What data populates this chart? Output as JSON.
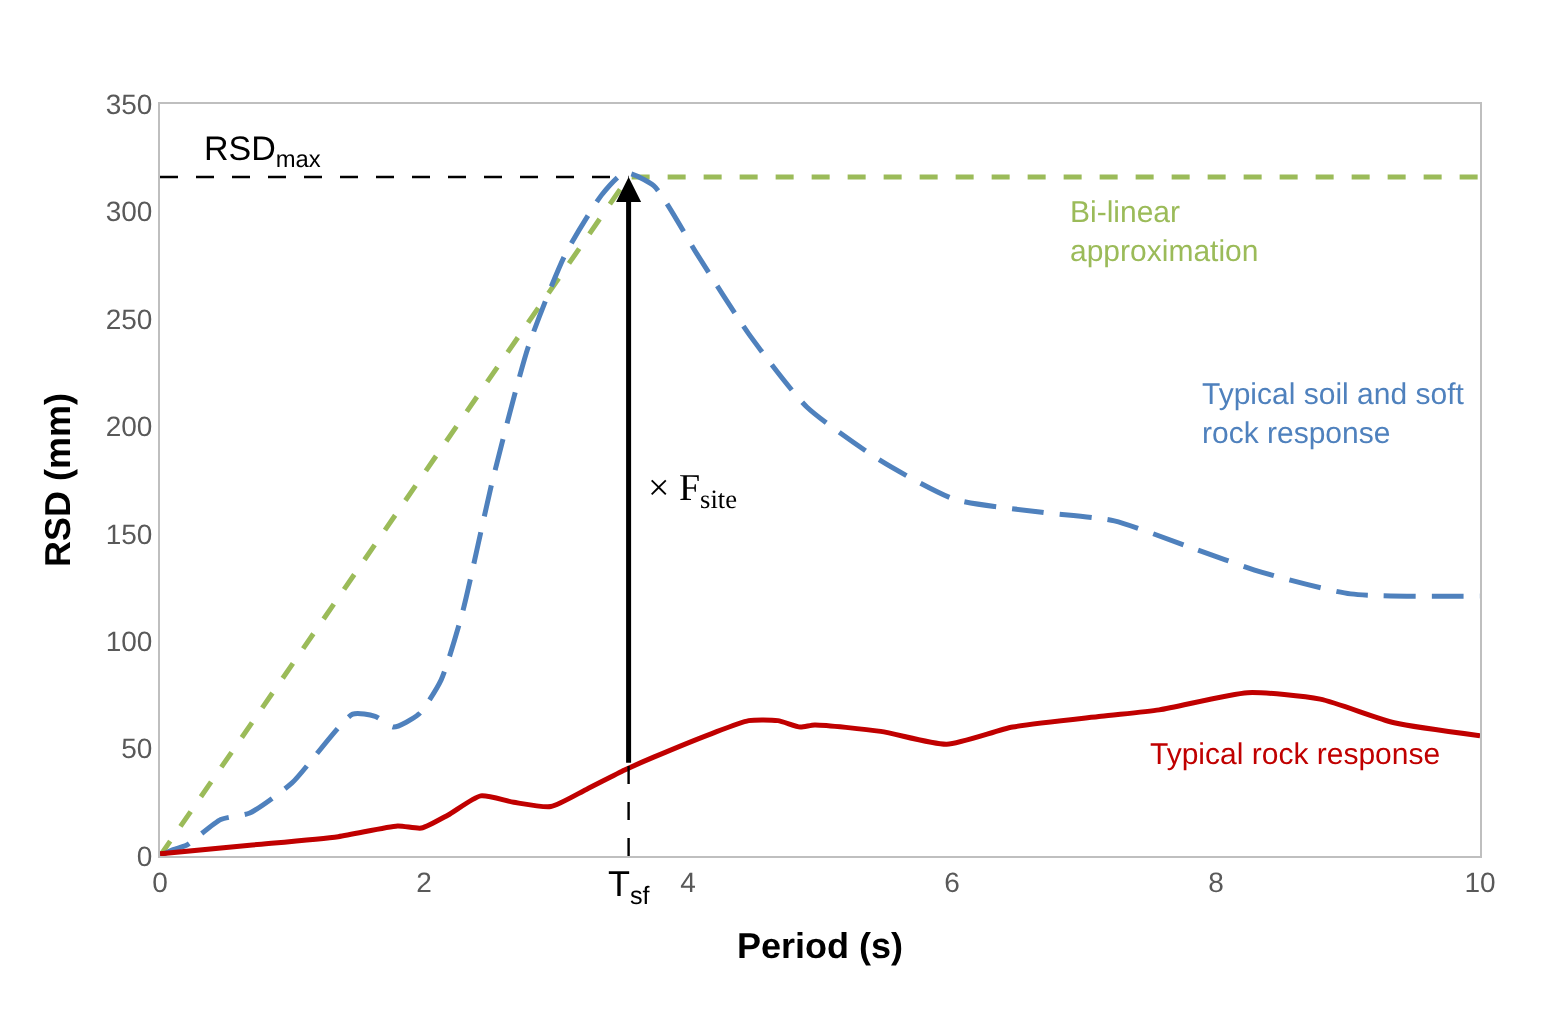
{
  "chart_data": {
    "type": "line",
    "xlabel": "Period (s)",
    "ylabel": "RSD (mm)",
    "xlim": [
      0,
      10
    ],
    "ylim": [
      0,
      350
    ],
    "xticks": [
      0,
      2,
      4,
      6,
      8,
      10
    ],
    "yticks": [
      0,
      50,
      100,
      150,
      200,
      250,
      300,
      350
    ],
    "grid": false,
    "legend": false,
    "marker": "none",
    "series": [
      {
        "name": "Bi-linear approximation",
        "color": "#9bbb59",
        "line_style": "dashed",
        "x": [
          0,
          3.55,
          10
        ],
        "values": [
          0,
          316,
          316
        ]
      },
      {
        "name": "Typical soil and soft rock response",
        "color": "#4f81bd",
        "line_style": "dashed",
        "x": [
          0,
          0.1,
          0.2,
          0.46,
          0.68,
          1.0,
          1.46,
          1.63,
          1.77,
          1.96,
          2.13,
          2.29,
          2.52,
          2.79,
          3.07,
          3.35,
          3.52,
          3.74,
          4.07,
          4.46,
          4.9,
          5.46,
          6.02,
          6.68,
          7.23,
          7.79,
          8.35,
          9.02,
          10
        ],
        "values": [
          0,
          3,
          5,
          17,
          20,
          34,
          66,
          65,
          60,
          66,
          82,
          113,
          175,
          237,
          280,
          308,
          318,
          312,
          280,
          243,
          209,
          184,
          166,
          160,
          156,
          144,
          132,
          122,
          121
        ]
      },
      {
        "name": "Typical rock response",
        "color": "#c00000",
        "line_style": "solid",
        "x": [
          0,
          0.68,
          1.35,
          1.8,
          1.98,
          2.18,
          2.43,
          2.68,
          2.96,
          3.23,
          3.52,
          3.74,
          4.18,
          4.46,
          4.68,
          4.85,
          4.96,
          5.46,
          5.96,
          6.46,
          7.13,
          7.57,
          8.24,
          8.79,
          9.35,
          10
        ],
        "values": [
          1,
          5,
          9,
          14,
          13,
          19,
          28,
          25,
          23,
          31,
          40,
          46,
          57,
          63,
          63,
          60,
          61,
          58,
          52,
          60,
          65,
          68,
          76,
          73,
          62,
          56
        ]
      }
    ],
    "ref_lines": [
      {
        "axis": "y",
        "value": 316,
        "label": "RSD$_{max}$",
        "color": "#000000",
        "line_style": "dashed"
      },
      {
        "axis": "x",
        "value": 3.55,
        "label": "T$_{sf}$",
        "color": "#000000",
        "line_style": "dashed"
      }
    ],
    "annotations": [
      {
        "text": "× F$_{site}$",
        "x": 3.55,
        "y": 170
      }
    ]
  }
}
